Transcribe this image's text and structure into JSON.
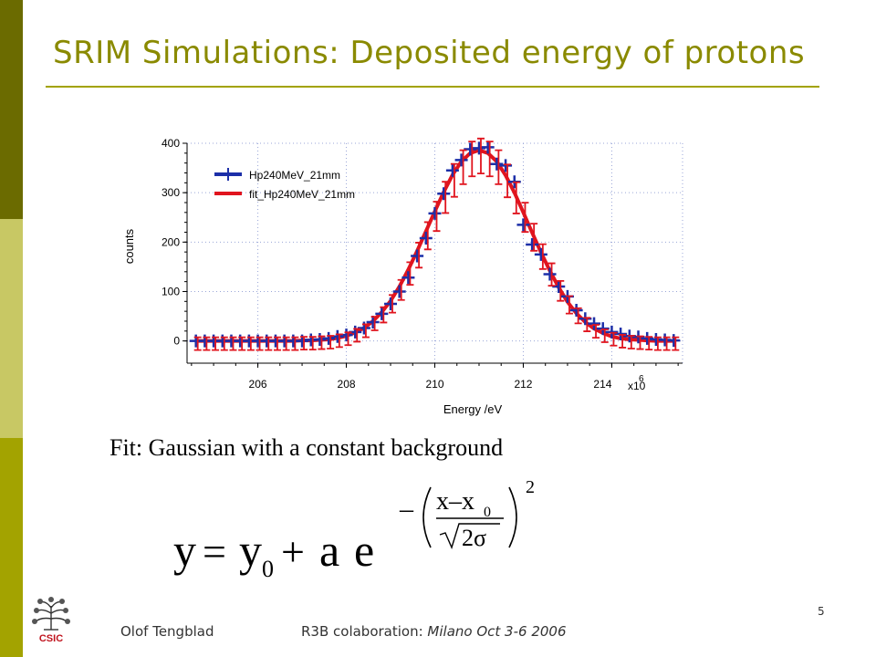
{
  "slide": {
    "title": "SRIM Simulations: Deposited energy of protons",
    "fit_caption": "Fit: Gaussian with a constant background",
    "page_number": "5",
    "footer_author": "Olof Tengblad",
    "footer_event_prefix": "R3B colaboration: ",
    "footer_event_location": "Milano  Oct 3-6  2006",
    "logo_text": "CSIC",
    "formula": {
      "lhs": "y",
      "equals": "=",
      "y0_base": "y",
      "y0_sub": "0",
      "plus": "+",
      "a": "a",
      "e": "e",
      "minus": "–",
      "numerator": "x–x",
      "numerator_sub": "0",
      "denominator": "2σ",
      "exponent": "2"
    }
  },
  "colors": {
    "sidebar_dark": "#6b6b00",
    "sidebar_light": "#c8c864",
    "sidebar_mid": "#a3a300",
    "title": "#8a8a00",
    "data_series": "#1c2fa8",
    "fit_series": "#e0141e"
  },
  "chart_data": {
    "type": "line",
    "xlabel": "Energy /eV",
    "ylabel": "counts",
    "x_multiplier_label": "x10",
    "x_multiplier_exp": "6",
    "xlim": [
      204.4,
      215.6
    ],
    "ylim": [
      -45,
      400
    ],
    "xticks": [
      206,
      208,
      210,
      212,
      214
    ],
    "xtick_labels": [
      "206",
      "208",
      "210",
      "212",
      "214"
    ],
    "yticks": [
      0,
      100,
      200,
      300,
      400
    ],
    "ytick_labels": [
      "0",
      "100",
      "200",
      "300",
      "400"
    ],
    "grid": true,
    "legend_position": "top-left",
    "series": [
      {
        "name": "Hp240MeV_21mm",
        "style": "markers",
        "marker": "cross",
        "x": [
          204.6,
          204.8,
          205.0,
          205.2,
          205.4,
          205.6,
          205.8,
          206.0,
          206.2,
          206.4,
          206.6,
          206.8,
          207.0,
          207.2,
          207.4,
          207.6,
          207.8,
          208.0,
          208.2,
          208.4,
          208.6,
          208.8,
          209.0,
          209.2,
          209.4,
          209.6,
          209.8,
          210.0,
          210.2,
          210.4,
          210.6,
          210.8,
          211.0,
          211.2,
          211.4,
          211.6,
          211.8,
          212.0,
          212.2,
          212.4,
          212.6,
          212.8,
          213.0,
          213.2,
          213.4,
          213.6,
          213.8,
          214.0,
          214.2,
          214.4,
          214.6,
          214.8,
          215.0,
          215.2,
          215.4
        ],
        "y": [
          0,
          0,
          0,
          0,
          0,
          0,
          0,
          0,
          0,
          0,
          0,
          0,
          0,
          2,
          3,
          5,
          9,
          12,
          18,
          26,
          38,
          55,
          75,
          100,
          128,
          172,
          208,
          258,
          298,
          345,
          366,
          388,
          390,
          392,
          358,
          355,
          322,
          235,
          195,
          175,
          135,
          110,
          90,
          62,
          45,
          35,
          25,
          18,
          14,
          10,
          8,
          5,
          3,
          2,
          1
        ]
      },
      {
        "name": "fit_Hp240MeV_21mm",
        "style": "line",
        "x": [
          204.6,
          204.8,
          205.0,
          205.2,
          205.4,
          205.6,
          205.8,
          206.0,
          206.2,
          206.4,
          206.6,
          206.8,
          207.0,
          207.2,
          207.4,
          207.6,
          207.8,
          208.0,
          208.2,
          208.4,
          208.6,
          208.8,
          209.0,
          209.2,
          209.4,
          209.6,
          209.8,
          210.0,
          210.2,
          210.4,
          210.6,
          210.8,
          211.0,
          211.2,
          211.4,
          211.6,
          211.8,
          212.0,
          212.2,
          212.4,
          212.6,
          212.8,
          213.0,
          213.2,
          213.4,
          213.6,
          213.8,
          214.0,
          214.2,
          214.4,
          214.6,
          214.8,
          215.0,
          215.2,
          215.4
        ],
        "y": [
          0,
          0,
          0,
          0,
          0,
          0,
          0,
          0,
          0,
          0,
          0,
          0,
          1,
          1,
          2,
          3,
          6,
          10,
          17,
          26,
          40,
          58,
          81,
          110,
          144,
          182,
          222,
          262,
          301,
          336,
          363,
          380,
          386,
          380,
          363,
          335,
          300,
          260,
          219,
          179,
          142,
          108,
          79,
          56,
          38,
          25,
          16,
          9,
          5,
          3,
          2,
          1,
          0,
          0,
          0
        ]
      }
    ]
  }
}
